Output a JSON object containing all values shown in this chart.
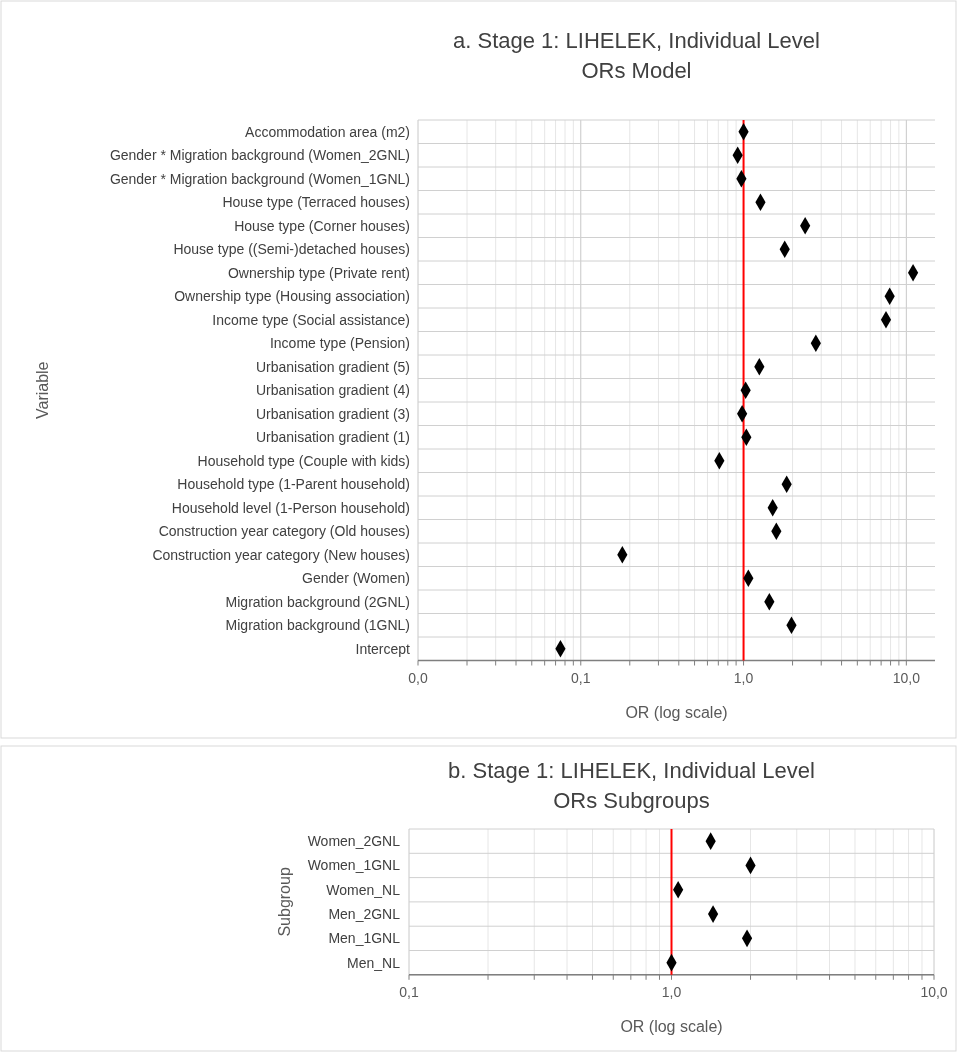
{
  "chart_data": [
    {
      "type": "scatter",
      "title": "a. Stage 1: LIHELEK, Individual Level",
      "subtitle": "ORs Model",
      "xlabel": "OR (log scale)",
      "ylabel": "Variable",
      "orientation": "horizontal",
      "log": "x",
      "grid": true,
      "marker": "diamond",
      "color": "#000000",
      "categories": [
        "Accommodation area (m2)",
        "Gender * Migration background (Women_2GNL)",
        "Gender * Migration background (Women_1GNL)",
        "House type (Terraced houses)",
        "House type (Corner houses)",
        "House type ((Semi-)detached houses)",
        "Ownership type (Private rent)",
        "Ownership type (Housing association)",
        "Income type (Social assistance)",
        "Income type (Pension)",
        "Urbanisation gradient (5)",
        "Urbanisation gradient (4)",
        "Urbanisation gradient (3)",
        "Urbanisation gradient (1)",
        "Household type (Couple with kids)",
        "Household type (1-Parent household)",
        "Household level (1-Person household)",
        "Construction year category (Old houses)",
        "Construction year category (New houses)",
        "Gender (Women)",
        "Migration background (2GNL)",
        "Migration background (1GNL)",
        "Intercept"
      ],
      "values": [
        1.0,
        0.92,
        0.97,
        1.27,
        2.39,
        1.79,
        11.0,
        7.9,
        7.5,
        2.78,
        1.25,
        1.03,
        0.98,
        1.04,
        0.71,
        1.84,
        1.51,
        1.59,
        0.18,
        1.07,
        1.44,
        1.97,
        0.075
      ],
      "xlim": [
        0.01,
        15
      ],
      "xticks": [
        {
          "value": 0.01,
          "label": "0,0"
        },
        {
          "value": 0.02,
          "label": null
        },
        {
          "value": 0.03,
          "label": null
        },
        {
          "value": 0.04,
          "label": null
        },
        {
          "value": 0.05,
          "label": null
        },
        {
          "value": 0.06,
          "label": null
        },
        {
          "value": 0.07,
          "label": null
        },
        {
          "value": 0.08,
          "label": null
        },
        {
          "value": 0.09,
          "label": null
        },
        {
          "value": 0.1,
          "label": "0,1"
        },
        {
          "value": 0.2,
          "label": null
        },
        {
          "value": 0.3,
          "label": null
        },
        {
          "value": 0.4,
          "label": null
        },
        {
          "value": 0.5,
          "label": null
        },
        {
          "value": 0.6,
          "label": null
        },
        {
          "value": 0.7,
          "label": null
        },
        {
          "value": 0.8,
          "label": null
        },
        {
          "value": 0.9,
          "label": null
        },
        {
          "value": 1,
          "label": "1,0"
        },
        {
          "value": 2,
          "label": null
        },
        {
          "value": 3,
          "label": null
        },
        {
          "value": 4,
          "label": null
        },
        {
          "value": 5,
          "label": null
        },
        {
          "value": 6,
          "label": null
        },
        {
          "value": 7,
          "label": null
        },
        {
          "value": 8,
          "label": null
        },
        {
          "value": 9,
          "label": null
        },
        {
          "value": 10,
          "label": "10,0"
        }
      ],
      "ref_lines": [
        {
          "axis": "x",
          "value": 1,
          "color": "#ff0000"
        }
      ]
    },
    {
      "type": "scatter",
      "title": "b. Stage 1: LIHELEK, Individual Level",
      "subtitle": "ORs Subgroups",
      "xlabel": "OR (log scale)",
      "ylabel": "Subgroup",
      "orientation": "horizontal",
      "log": "x",
      "grid": true,
      "marker": "diamond",
      "color": "#000000",
      "categories": [
        "Women_2GNL",
        "Women_1GNL",
        "Women_NL",
        "Men_2GNL",
        "Men_1GNL",
        "Men_NL"
      ],
      "values": [
        1.41,
        2.0,
        1.06,
        1.44,
        1.94,
        1.0
      ],
      "xlim": [
        0.1,
        10
      ],
      "xticks": [
        {
          "value": 0.1,
          "label": "0,1"
        },
        {
          "value": 0.2,
          "label": null
        },
        {
          "value": 0.3,
          "label": null
        },
        {
          "value": 0.4,
          "label": null
        },
        {
          "value": 0.5,
          "label": null
        },
        {
          "value": 0.6,
          "label": null
        },
        {
          "value": 0.7,
          "label": null
        },
        {
          "value": 0.8,
          "label": null
        },
        {
          "value": 0.9,
          "label": null
        },
        {
          "value": 1,
          "label": "1,0"
        },
        {
          "value": 2,
          "label": null
        },
        {
          "value": 3,
          "label": null
        },
        {
          "value": 4,
          "label": null
        },
        {
          "value": 5,
          "label": null
        },
        {
          "value": 6,
          "label": null
        },
        {
          "value": 7,
          "label": null
        },
        {
          "value": 8,
          "label": null
        },
        {
          "value": 9,
          "label": null
        },
        {
          "value": 10,
          "label": "10,0"
        }
      ],
      "ref_lines": [
        {
          "axis": "x",
          "value": 1,
          "color": "#ff0000"
        }
      ]
    }
  ]
}
